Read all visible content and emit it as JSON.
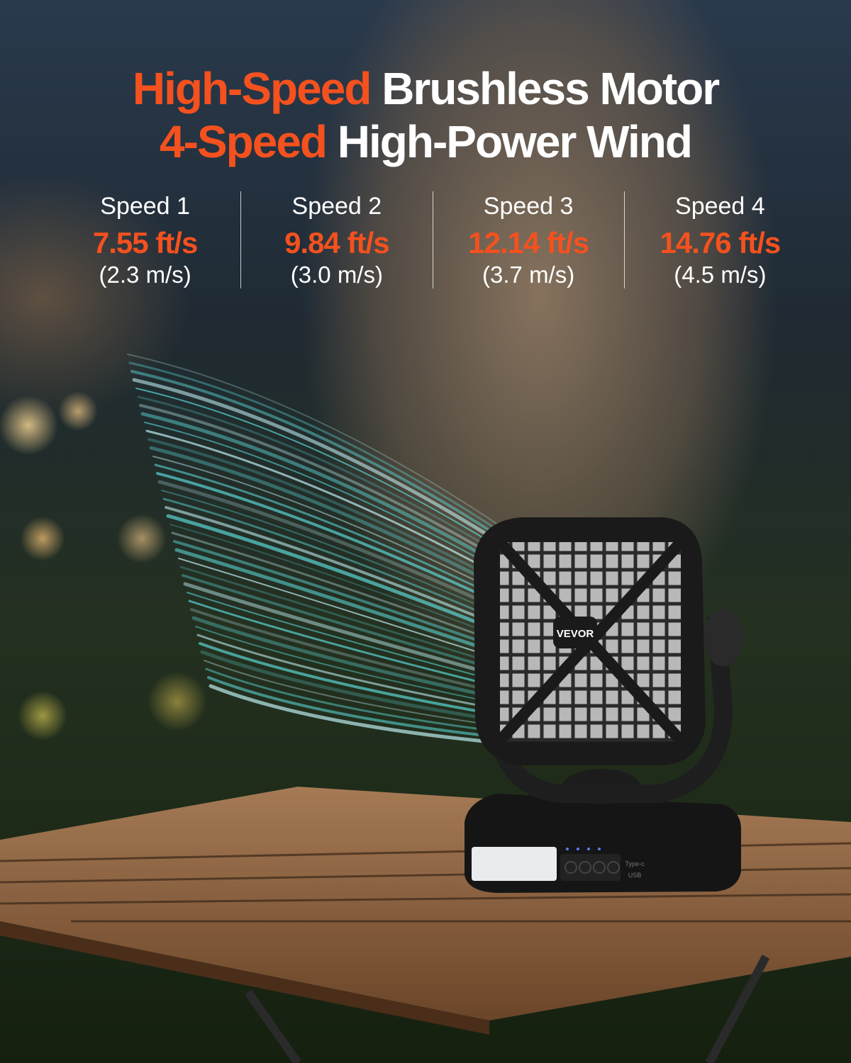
{
  "headline": {
    "line1": {
      "accent": "High-Speed",
      "rest": "Brushless Motor"
    },
    "line2": {
      "accent": "4-Speed",
      "rest": "High-Power Wind"
    }
  },
  "speeds": [
    {
      "label": "Speed 1",
      "ft": "7.55 ft/s",
      "ms": "(2.3 m/s)"
    },
    {
      "label": "Speed 2",
      "ft": "9.84 ft/s",
      "ms": "(3.0 m/s)"
    },
    {
      "label": "Speed 3",
      "ft": "12.14 ft/s",
      "ms": "(3.7 m/s)"
    },
    {
      "label": "Speed 4",
      "ft": "14.76 ft/s",
      "ms": "(4.5 m/s)"
    }
  ],
  "product": {
    "brand": "VEVOR",
    "port_label_1": "Type-c",
    "port_label_2": "USB"
  },
  "colors": {
    "accent": "#f4511e",
    "text": "#ffffff",
    "wind": "#5fe0e0"
  }
}
